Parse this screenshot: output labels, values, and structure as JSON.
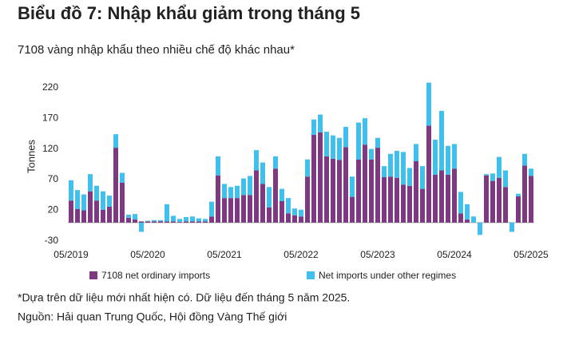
{
  "chart_data": {
    "type": "stacked_bar",
    "title": "Biểu đồ 7: Nhập khẩu giảm trong tháng 5",
    "subtitle": "7108 vàng nhập khẩu theo nhiều chế độ khác nhau*",
    "y_label": "Tonnes",
    "categories": [
      "05/2019",
      null,
      null,
      null,
      null,
      null,
      null,
      null,
      null,
      null,
      null,
      null,
      "05/2020",
      null,
      null,
      null,
      null,
      null,
      null,
      null,
      null,
      null,
      null,
      null,
      "05/2021",
      null,
      null,
      null,
      null,
      null,
      null,
      null,
      null,
      null,
      null,
      null,
      "05/2022",
      null,
      null,
      null,
      null,
      null,
      null,
      null,
      null,
      null,
      null,
      null,
      "05/2023",
      null,
      null,
      null,
      null,
      null,
      null,
      null,
      null,
      null,
      null,
      null,
      "05/2024",
      null,
      null,
      null,
      null,
      null,
      null,
      null,
      null,
      null,
      null,
      null,
      "05/2025"
    ],
    "series": [
      {
        "name": "7108 net ordinary imports",
        "color": "#7d3a7f",
        "values": [
          36,
          22,
          20,
          51,
          36,
          21,
          26,
          122,
          65,
          8,
          5,
          2,
          2,
          2,
          2,
          2,
          2,
          1,
          2,
          2,
          2,
          2,
          10,
          77,
          40,
          40,
          40,
          45,
          45,
          85,
          63,
          25,
          88,
          35,
          15,
          12,
          10,
          75,
          143,
          147,
          108,
          104,
          102,
          123,
          42,
          103,
          127,
          103,
          122,
          74,
          75,
          73,
          62,
          60,
          100,
          55,
          158,
          78,
          85,
          78,
          88,
          15,
          5,
          0,
          0,
          77,
          68,
          73,
          58,
          0,
          43,
          93,
          76
        ]
      },
      {
        "name": "Net imports under other regimes",
        "color": "#41c0ec",
        "values": [
          33,
          31,
          26,
          28,
          24,
          30,
          18,
          22,
          16,
          5,
          9,
          -15,
          1,
          2,
          2,
          28,
          9,
          5,
          7,
          8,
          5,
          4,
          24,
          31,
          23,
          18,
          20,
          27,
          31,
          33,
          35,
          33,
          20,
          20,
          25,
          11,
          11,
          28,
          25,
          29,
          40,
          38,
          36,
          33,
          33,
          60,
          43,
          17,
          16,
          18,
          37,
          44,
          53,
          29,
          28,
          37,
          70,
          57,
          97,
          47,
          40,
          35,
          25,
          10,
          -20,
          2,
          12,
          34,
          27,
          -15,
          4,
          19,
          12
        ]
      }
    ],
    "ylim": [
      -30,
      230
    ],
    "yticks": [
      -30,
      20,
      70,
      120,
      170,
      220
    ],
    "grid": false,
    "notes": [
      "*Dựa trên dữ liệu mới nhất hiện có. Dữ liệu đến tháng 5 năm 2025.",
      "Nguồn: Hải quan Trung Quốc, Hội đồng Vàng Thế giới"
    ]
  }
}
